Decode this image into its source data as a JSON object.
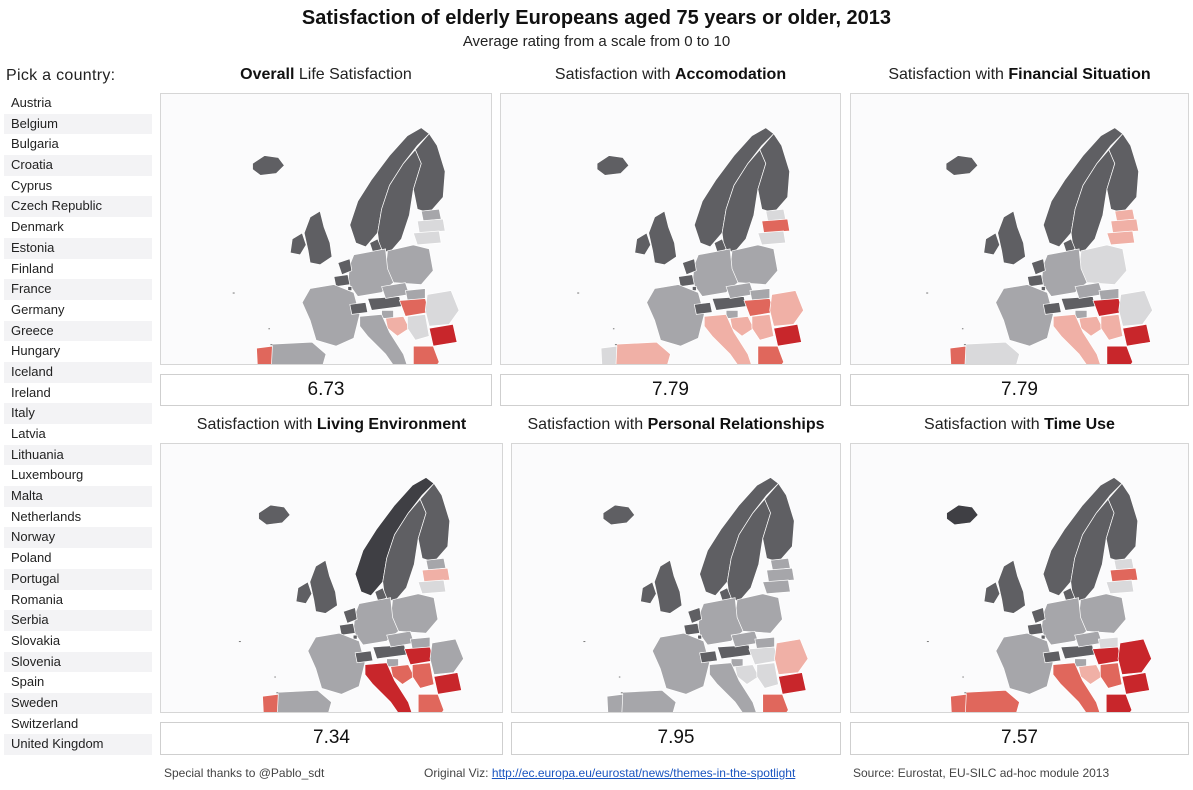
{
  "title": "Satisfaction of elderly Europeans aged 75 years or older, 2013",
  "subtitle": "Average rating from a scale from 0 to 10",
  "picker": {
    "label": "Pick a country:",
    "countries": [
      "Austria",
      "Belgium",
      "Bulgaria",
      "Croatia",
      "Cyprus",
      "Czech Republic",
      "Denmark",
      "Estonia",
      "Finland",
      "France",
      "Germany",
      "Greece",
      "Hungary",
      "Iceland",
      "Ireland",
      "Italy",
      "Latvia",
      "Lithuania",
      "Luxembourg",
      "Malta",
      "Netherlands",
      "Norway",
      "Poland",
      "Portugal",
      "Romania",
      "Serbia",
      "Slovakia",
      "Slovenia",
      "Spain",
      "Sweden",
      "Switzerland",
      "United Kingdom"
    ]
  },
  "panels": [
    {
      "title_pre": "",
      "title_bold": "Overall",
      "title_post": " Life Satisfaction",
      "value": "6.73"
    },
    {
      "title_pre": "Satisfaction with ",
      "title_bold": "Accomodation",
      "title_post": "",
      "value": "7.79"
    },
    {
      "title_pre": "Satisfaction with ",
      "title_bold": "Financial Situation",
      "title_post": "",
      "value": "7.79"
    },
    {
      "title_pre": "Satisfaction with ",
      "title_bold": "Living Environment",
      "title_post": "",
      "value": "7.34"
    },
    {
      "title_pre": "Satisfaction with ",
      "title_bold": "Personal Relationships",
      "title_post": "",
      "value": "7.95"
    },
    {
      "title_pre": "Satisfaction with ",
      "title_bold": "Time Use",
      "title_post": "",
      "value": "7.57"
    }
  ],
  "colors": {
    "high": "#5f5f63",
    "mid": "#a6a6aa",
    "neutral": "#d9d9db",
    "low_light": "#f0b0a6",
    "low": "#e0675c",
    "very_low": "#c8262b"
  },
  "footer": {
    "thanks": "Special thanks to @Pablo_sdt",
    "original_label": "Original Viz: ",
    "original_link": "http://ec.europa.eu/eurostat/news/themes-in-the-spotlight",
    "source": "Source: Eurostat, EU-SILC ad-hoc module 2013"
  }
}
